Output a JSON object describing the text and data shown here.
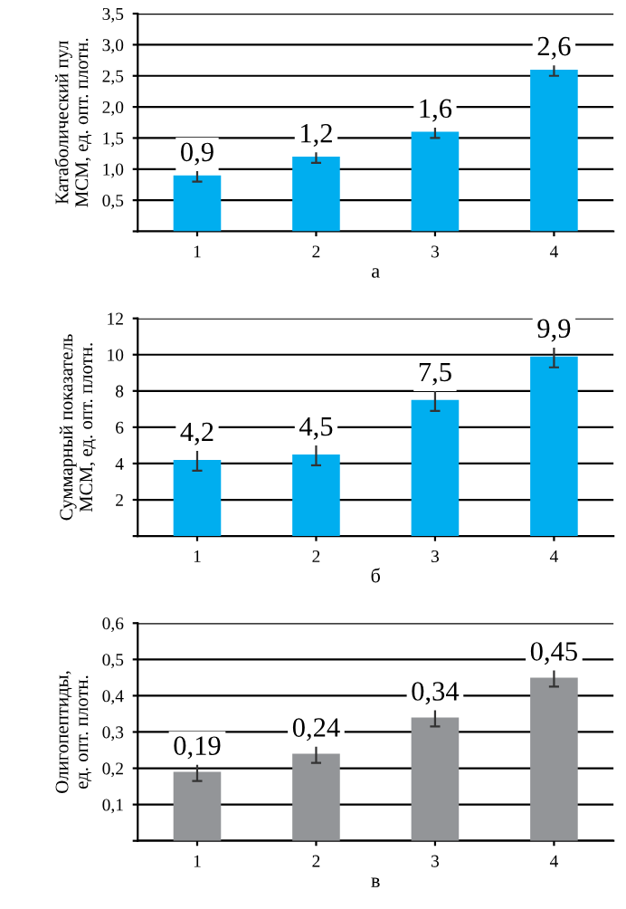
{
  "chart_data": [
    {
      "type": "bar",
      "xlabel": "а",
      "ylabel": "Катаболический пул\nМСМ, ед. опт. плотн.",
      "categories": [
        "1",
        "2",
        "3",
        "4"
      ],
      "values": [
        0.9,
        1.2,
        1.6,
        2.6
      ],
      "value_labels": [
        "0,9",
        "1,2",
        "1,6",
        "2,6"
      ],
      "errors": [
        0.1,
        0.1,
        0.1,
        0.1
      ],
      "color": "#00aeef",
      "ylim": [
        0,
        3.5
      ],
      "yticks": [
        {
          "value": 0,
          "label": null
        },
        {
          "value": 0.5,
          "label": "0,5"
        },
        {
          "value": 1.0,
          "label": "1,0"
        },
        {
          "value": 1.5,
          "label": "1,5"
        },
        {
          "value": 2.0,
          "label": "2,0"
        },
        {
          "value": 2.5,
          "label": "2,5"
        },
        {
          "value": 3.0,
          "label": "3,0"
        },
        {
          "value": 3.5,
          "label": "3,5"
        }
      ],
      "grid": "y"
    },
    {
      "type": "bar",
      "xlabel": "б",
      "ylabel": "Суммарный показатель\nМСМ, ед. опт. плотн.",
      "categories": [
        "1",
        "2",
        "3",
        "4"
      ],
      "values": [
        4.2,
        4.5,
        7.5,
        9.9
      ],
      "value_labels": [
        "4,2",
        "4,5",
        "7,5",
        "9,9"
      ],
      "errors": [
        0.6,
        0.6,
        0.6,
        0.6
      ],
      "color": "#00aeef",
      "ylim": [
        0,
        12
      ],
      "yticks": [
        {
          "value": 0,
          "label": null
        },
        2,
        4,
        6,
        8,
        10,
        12
      ],
      "grid": "y"
    },
    {
      "type": "bar",
      "xlabel": "в",
      "ylabel": "Олигопептиды,\nед. опт. плотн.",
      "categories": [
        "1",
        "2",
        "3",
        "4"
      ],
      "values": [
        0.19,
        0.24,
        0.34,
        0.45
      ],
      "value_labels": [
        "0,19",
        "0,24",
        "0,34",
        "0,45"
      ],
      "errors": [
        0.025,
        0.025,
        0.025,
        0.025
      ],
      "color": "#939598",
      "ylim": [
        0,
        0.6
      ],
      "yticks": [
        {
          "value": 0,
          "label": null
        },
        {
          "value": 0.1,
          "label": "0,1"
        },
        {
          "value": 0.2,
          "label": "0,2"
        },
        {
          "value": 0.3,
          "label": "0,3"
        },
        {
          "value": 0.4,
          "label": "0,4"
        },
        {
          "value": 0.5,
          "label": "0,5"
        },
        {
          "value": 0.6,
          "label": "0,6"
        }
      ],
      "grid": "y"
    }
  ]
}
